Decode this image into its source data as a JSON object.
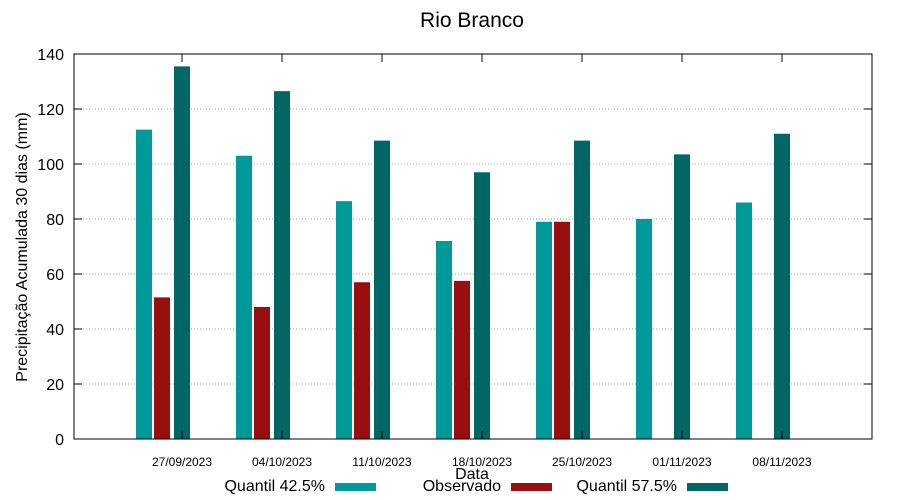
{
  "chart_data": {
    "type": "bar",
    "title": "Rio Branco",
    "xlabel": "Data",
    "ylabel": "Precipitação Acumulada 30 dias (mm)",
    "ylim": [
      0,
      140
    ],
    "yticks": [
      0,
      20,
      40,
      60,
      80,
      100,
      120,
      140
    ],
    "grid": true,
    "legend_position": "bottom",
    "categories": [
      "27/09/2023",
      "04/10/2023",
      "11/10/2023",
      "18/10/2023",
      "25/10/2023",
      "01/11/2023",
      "08/11/2023"
    ],
    "series": [
      {
        "name": "Quantil 42.5%",
        "color": "#009999",
        "values": [
          112.5,
          103,
          86.5,
          72,
          79,
          80,
          86
        ]
      },
      {
        "name": "Observado",
        "color": "#990f0f",
        "values": [
          51.5,
          48,
          57,
          57.5,
          79,
          null,
          null
        ]
      },
      {
        "name": "Quantil 57.5%",
        "color": "#006666",
        "values": [
          135.5,
          126.5,
          108.5,
          97,
          108.5,
          103.5,
          111
        ]
      }
    ]
  }
}
